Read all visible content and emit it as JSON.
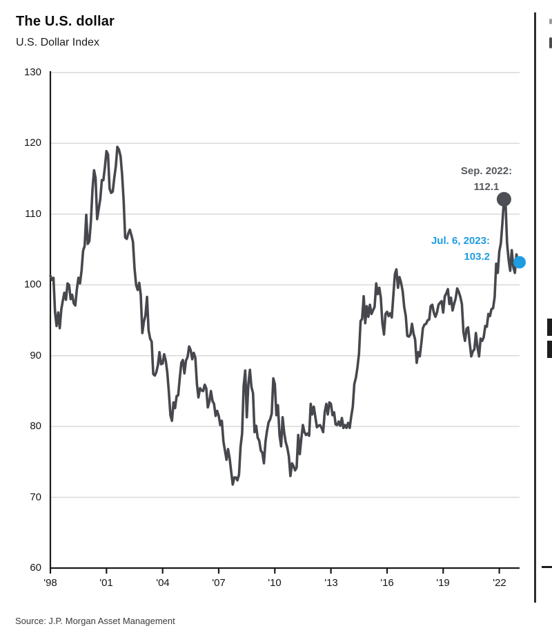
{
  "header": {
    "title": "The U.S. dollar",
    "subtitle": "U.S. Dollar Index"
  },
  "source": {
    "text": "Source: J.P. Morgan Asset Management"
  },
  "annotations": {
    "peak": {
      "text": "Sep. 2022:\n112.1",
      "color": "#56585d",
      "dot_color": "#4d4f54",
      "series_index": 291
    },
    "latest": {
      "text": "Jul. 6, 2023:\n103.2",
      "color": "#1e9ce2",
      "dot_color": "#1e9ce2",
      "series_index": 301
    }
  },
  "chart_data": {
    "type": "line",
    "title": "The U.S. dollar",
    "ylabel": "U.S. Dollar Index",
    "xlabel": "",
    "x_start": "1998-06",
    "x_end": "2023-07-06",
    "frequency": "monthly",
    "ylim": [
      60,
      130
    ],
    "yticks": [
      60,
      70,
      80,
      90,
      100,
      110,
      120,
      130
    ],
    "xtick_labels": [
      "'98",
      "'01",
      "'04",
      "'07",
      "'10",
      "'13",
      "'16",
      "'19",
      "'22"
    ],
    "xtick_indices": [
      0,
      36,
      72,
      108,
      144,
      180,
      216,
      252,
      288
    ],
    "grid": true,
    "legend": false,
    "line_color": "#46484d",
    "grid_color": "#d9d9d9",
    "axis_color": "#1a1a1a",
    "series": [
      {
        "name": "U.S. Dollar Index",
        "values": [
          101.3,
          100.7,
          101.0,
          96.1,
          94.2,
          96.1,
          93.9,
          96.5,
          97.8,
          98.9,
          97.9,
          100.2,
          100.0,
          98.0,
          98.6,
          97.4,
          97.1,
          99.4,
          101.0,
          100.2,
          102.0,
          104.8,
          105.5,
          109.9,
          105.8,
          106.2,
          108.9,
          113.4,
          116.2,
          115.1,
          109.3,
          110.7,
          112.1,
          114.8,
          114.8,
          116.7,
          118.9,
          118.4,
          113.6,
          113.0,
          113.2,
          115.1,
          116.8,
          119.5,
          119.1,
          118.2,
          115.7,
          111.9,
          106.7,
          106.5,
          107.3,
          107.8,
          107.0,
          106.1,
          102.3,
          100.0,
          99.3,
          100.3,
          98.6,
          93.2,
          94.8,
          95.7,
          98.3,
          93.6,
          92.4,
          92.0,
          87.4,
          87.2,
          87.7,
          88.7,
          90.5,
          88.8,
          88.9,
          90.2,
          89.3,
          87.7,
          84.9,
          81.6,
          80.8,
          83.4,
          82.6,
          84.3,
          84.4,
          86.8,
          89.0,
          89.4,
          87.5,
          89.3,
          89.8,
          91.3,
          90.8,
          89.5,
          90.4,
          89.7,
          86.0,
          84.1,
          85.4,
          85.1,
          85.0,
          85.9,
          85.4,
          82.7,
          83.5,
          85.0,
          83.6,
          83.2,
          81.5,
          82.2,
          81.5,
          80.2,
          80.8,
          77.9,
          76.6,
          75.3,
          76.8,
          75.5,
          73.6,
          71.8,
          72.8,
          72.8,
          72.4,
          73.2,
          77.1,
          79.0,
          85.7,
          87.9,
          81.3,
          85.9,
          88.0,
          85.6,
          84.7,
          79.2,
          80.1,
          78.4,
          78.0,
          76.6,
          76.3,
          74.8,
          77.9,
          79.4,
          80.6,
          81.0,
          81.8,
          86.8,
          86.0,
          81.6,
          83.0,
          78.8,
          77.2,
          81.3,
          79.1,
          77.8,
          77.0,
          75.8,
          73.0,
          74.8,
          74.4,
          73.8,
          74.2,
          78.8,
          76.1,
          78.3,
          80.2,
          79.2,
          78.8,
          79.0,
          78.7,
          83.2,
          81.7,
          82.8,
          81.3,
          79.9,
          80.1,
          80.2,
          79.8,
          79.2,
          82.0,
          83.2,
          81.7,
          83.4,
          83.2,
          81.6,
          82.0,
          80.3,
          80.2,
          80.7,
          80.1,
          81.2,
          79.8,
          80.2,
          79.8,
          80.5,
          79.8,
          81.4,
          82.8,
          86.0,
          86.9,
          88.3,
          90.3,
          94.9,
          95.2,
          98.4,
          94.6,
          97.0,
          95.5,
          97.2,
          95.9,
          96.4,
          96.9,
          100.2,
          98.7,
          99.6,
          98.2,
          94.6,
          93.0,
          95.9,
          96.2,
          95.6,
          96.0,
          95.4,
          98.4,
          101.5,
          102.2,
          99.6,
          101.1,
          100.3,
          99.1,
          96.9,
          95.6,
          92.8,
          92.7,
          93.0,
          94.5,
          93.1,
          92.3,
          89.0,
          90.5,
          89.9,
          91.8,
          93.9,
          94.4,
          94.5,
          95.0,
          95.1,
          97.0,
          97.2,
          96.1,
          95.5,
          96.1,
          97.2,
          97.5,
          97.7,
          96.1,
          98.4,
          98.8,
          99.4,
          97.3,
          98.2,
          96.4,
          97.3,
          98.1,
          99.5,
          99.0,
          98.3,
          97.3,
          93.3,
          92.1,
          93.8,
          94.0,
          91.8,
          89.9,
          90.6,
          90.9,
          93.2,
          91.2,
          89.9,
          92.4,
          92.1,
          92.6,
          94.2,
          94.1,
          95.9,
          95.6,
          96.6,
          96.7,
          98.3,
          103.0,
          101.7,
          104.7,
          105.9,
          108.7,
          112.1,
          111.5,
          105.9,
          103.5,
          102.0,
          104.9,
          102.5,
          101.7,
          104.3,
          102.9,
          103.2
        ]
      }
    ],
    "annotated_points": [
      {
        "label": "Sep. 2022",
        "value": 112.1
      },
      {
        "label": "Jul. 6, 2023",
        "value": 103.2
      }
    ]
  }
}
